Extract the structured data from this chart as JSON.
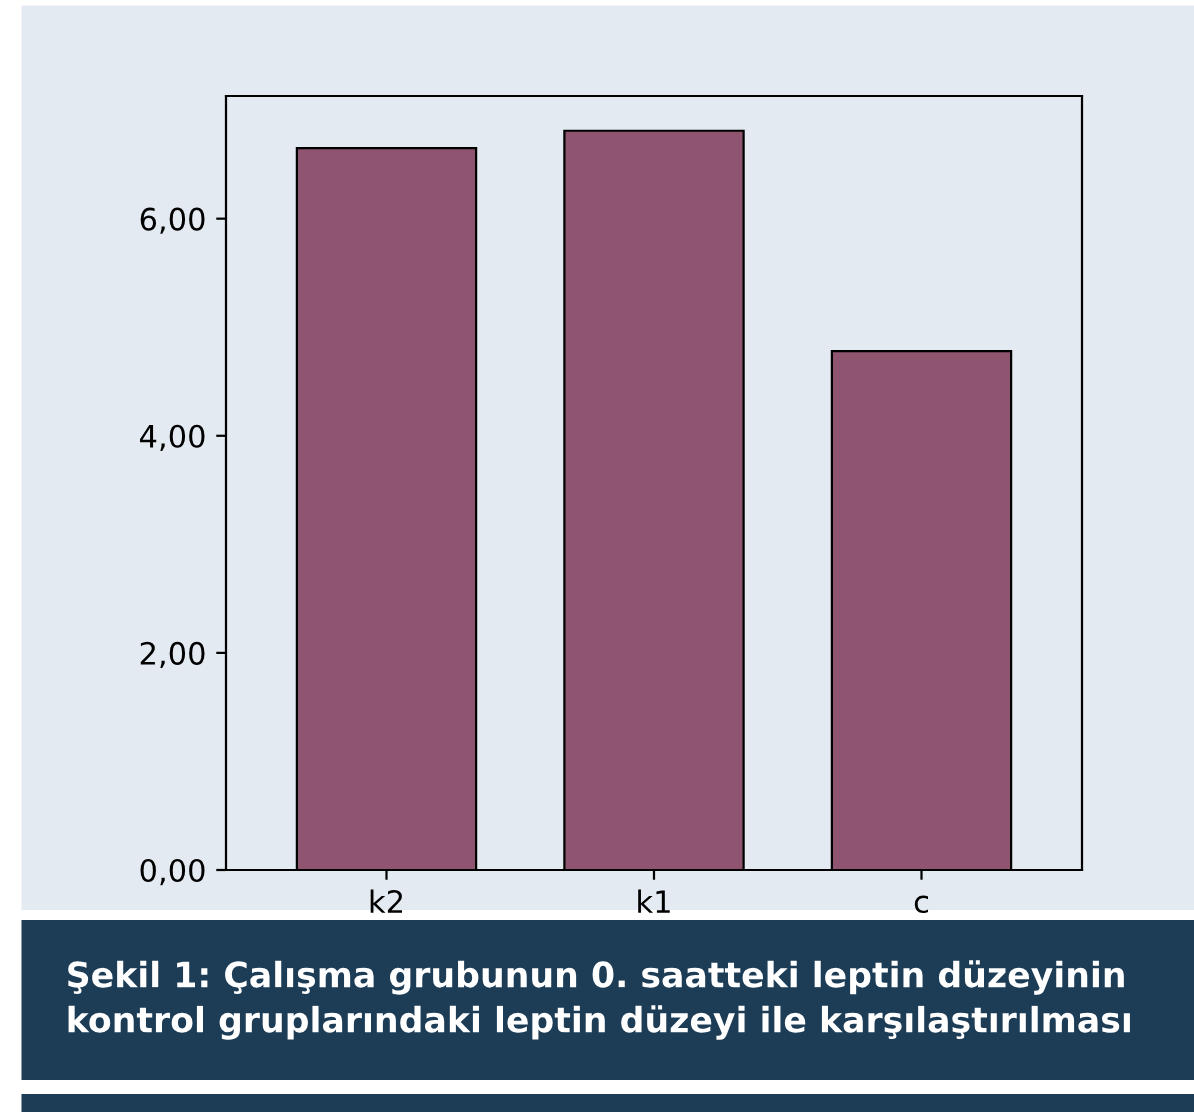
{
  "chart_data": {
    "type": "bar",
    "title": "Şekil 1: Çalışma grubunun 0. saatteki leptin düzeyinin kontrol gruplarındaki leptin düzeyi ile karşılaştırılması",
    "categories": [
      "k2",
      "k1",
      "c"
    ],
    "values": [
      6.65,
      6.81,
      4.78
    ],
    "color": "#8e5470",
    "ylim": [
      0,
      7.13
    ],
    "yticks": [
      {
        "value": 0,
        "label": "0,00"
      },
      {
        "value": 2,
        "label": "2,00"
      },
      {
        "value": 4,
        "label": "4,00"
      },
      {
        "value": 6,
        "label": "6,00"
      }
    ],
    "grid": false
  }
}
